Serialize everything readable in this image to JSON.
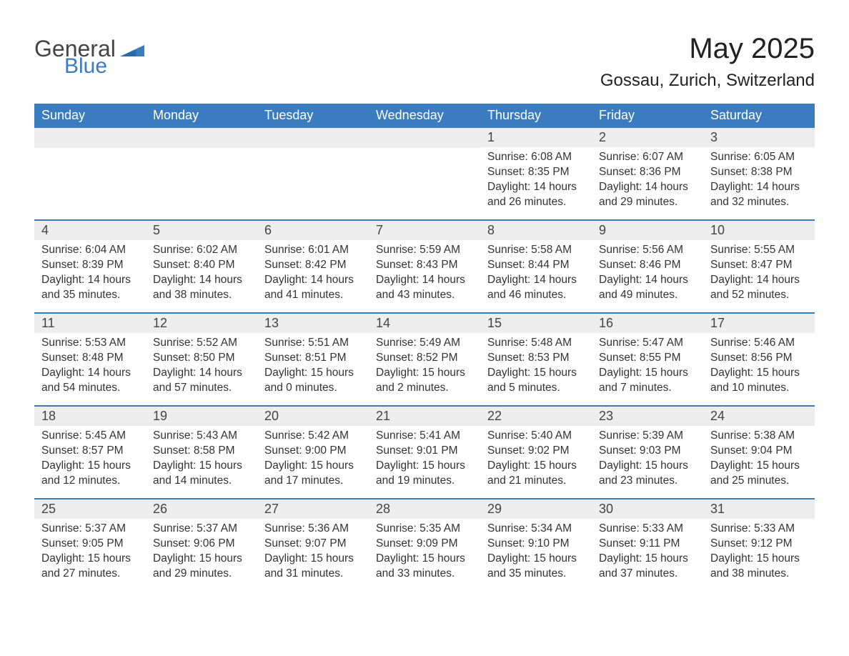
{
  "logo": {
    "general": "General",
    "blue": "Blue"
  },
  "title": "May 2025",
  "subtitle": "Gossau, Zurich, Switzerland",
  "colors": {
    "header_bg": "#3b7bbf",
    "header_text": "#ffffff",
    "daynum_bg": "#ededed",
    "row_divider": "#3b7bbf",
    "body_text": "#333333",
    "page_bg": "#ffffff"
  },
  "weekdays": [
    "Sunday",
    "Monday",
    "Tuesday",
    "Wednesday",
    "Thursday",
    "Friday",
    "Saturday"
  ],
  "weeks": [
    [
      null,
      null,
      null,
      null,
      {
        "n": "1",
        "sunrise": "6:08 AM",
        "sunset": "8:35 PM",
        "dl1": "Daylight: 14 hours",
        "dl2": "and 26 minutes."
      },
      {
        "n": "2",
        "sunrise": "6:07 AM",
        "sunset": "8:36 PM",
        "dl1": "Daylight: 14 hours",
        "dl2": "and 29 minutes."
      },
      {
        "n": "3",
        "sunrise": "6:05 AM",
        "sunset": "8:38 PM",
        "dl1": "Daylight: 14 hours",
        "dl2": "and 32 minutes."
      }
    ],
    [
      {
        "n": "4",
        "sunrise": "6:04 AM",
        "sunset": "8:39 PM",
        "dl1": "Daylight: 14 hours",
        "dl2": "and 35 minutes."
      },
      {
        "n": "5",
        "sunrise": "6:02 AM",
        "sunset": "8:40 PM",
        "dl1": "Daylight: 14 hours",
        "dl2": "and 38 minutes."
      },
      {
        "n": "6",
        "sunrise": "6:01 AM",
        "sunset": "8:42 PM",
        "dl1": "Daylight: 14 hours",
        "dl2": "and 41 minutes."
      },
      {
        "n": "7",
        "sunrise": "5:59 AM",
        "sunset": "8:43 PM",
        "dl1": "Daylight: 14 hours",
        "dl2": "and 43 minutes."
      },
      {
        "n": "8",
        "sunrise": "5:58 AM",
        "sunset": "8:44 PM",
        "dl1": "Daylight: 14 hours",
        "dl2": "and 46 minutes."
      },
      {
        "n": "9",
        "sunrise": "5:56 AM",
        "sunset": "8:46 PM",
        "dl1": "Daylight: 14 hours",
        "dl2": "and 49 minutes."
      },
      {
        "n": "10",
        "sunrise": "5:55 AM",
        "sunset": "8:47 PM",
        "dl1": "Daylight: 14 hours",
        "dl2": "and 52 minutes."
      }
    ],
    [
      {
        "n": "11",
        "sunrise": "5:53 AM",
        "sunset": "8:48 PM",
        "dl1": "Daylight: 14 hours",
        "dl2": "and 54 minutes."
      },
      {
        "n": "12",
        "sunrise": "5:52 AM",
        "sunset": "8:50 PM",
        "dl1": "Daylight: 14 hours",
        "dl2": "and 57 minutes."
      },
      {
        "n": "13",
        "sunrise": "5:51 AM",
        "sunset": "8:51 PM",
        "dl1": "Daylight: 15 hours",
        "dl2": "and 0 minutes."
      },
      {
        "n": "14",
        "sunrise": "5:49 AM",
        "sunset": "8:52 PM",
        "dl1": "Daylight: 15 hours",
        "dl2": "and 2 minutes."
      },
      {
        "n": "15",
        "sunrise": "5:48 AM",
        "sunset": "8:53 PM",
        "dl1": "Daylight: 15 hours",
        "dl2": "and 5 minutes."
      },
      {
        "n": "16",
        "sunrise": "5:47 AM",
        "sunset": "8:55 PM",
        "dl1": "Daylight: 15 hours",
        "dl2": "and 7 minutes."
      },
      {
        "n": "17",
        "sunrise": "5:46 AM",
        "sunset": "8:56 PM",
        "dl1": "Daylight: 15 hours",
        "dl2": "and 10 minutes."
      }
    ],
    [
      {
        "n": "18",
        "sunrise": "5:45 AM",
        "sunset": "8:57 PM",
        "dl1": "Daylight: 15 hours",
        "dl2": "and 12 minutes."
      },
      {
        "n": "19",
        "sunrise": "5:43 AM",
        "sunset": "8:58 PM",
        "dl1": "Daylight: 15 hours",
        "dl2": "and 14 minutes."
      },
      {
        "n": "20",
        "sunrise": "5:42 AM",
        "sunset": "9:00 PM",
        "dl1": "Daylight: 15 hours",
        "dl2": "and 17 minutes."
      },
      {
        "n": "21",
        "sunrise": "5:41 AM",
        "sunset": "9:01 PM",
        "dl1": "Daylight: 15 hours",
        "dl2": "and 19 minutes."
      },
      {
        "n": "22",
        "sunrise": "5:40 AM",
        "sunset": "9:02 PM",
        "dl1": "Daylight: 15 hours",
        "dl2": "and 21 minutes."
      },
      {
        "n": "23",
        "sunrise": "5:39 AM",
        "sunset": "9:03 PM",
        "dl1": "Daylight: 15 hours",
        "dl2": "and 23 minutes."
      },
      {
        "n": "24",
        "sunrise": "5:38 AM",
        "sunset": "9:04 PM",
        "dl1": "Daylight: 15 hours",
        "dl2": "and 25 minutes."
      }
    ],
    [
      {
        "n": "25",
        "sunrise": "5:37 AM",
        "sunset": "9:05 PM",
        "dl1": "Daylight: 15 hours",
        "dl2": "and 27 minutes."
      },
      {
        "n": "26",
        "sunrise": "5:37 AM",
        "sunset": "9:06 PM",
        "dl1": "Daylight: 15 hours",
        "dl2": "and 29 minutes."
      },
      {
        "n": "27",
        "sunrise": "5:36 AM",
        "sunset": "9:07 PM",
        "dl1": "Daylight: 15 hours",
        "dl2": "and 31 minutes."
      },
      {
        "n": "28",
        "sunrise": "5:35 AM",
        "sunset": "9:09 PM",
        "dl1": "Daylight: 15 hours",
        "dl2": "and 33 minutes."
      },
      {
        "n": "29",
        "sunrise": "5:34 AM",
        "sunset": "9:10 PM",
        "dl1": "Daylight: 15 hours",
        "dl2": "and 35 minutes."
      },
      {
        "n": "30",
        "sunrise": "5:33 AM",
        "sunset": "9:11 PM",
        "dl1": "Daylight: 15 hours",
        "dl2": "and 37 minutes."
      },
      {
        "n": "31",
        "sunrise": "5:33 AM",
        "sunset": "9:12 PM",
        "dl1": "Daylight: 15 hours",
        "dl2": "and 38 minutes."
      }
    ]
  ],
  "labels": {
    "sunrise_prefix": "Sunrise: ",
    "sunset_prefix": "Sunset: "
  }
}
